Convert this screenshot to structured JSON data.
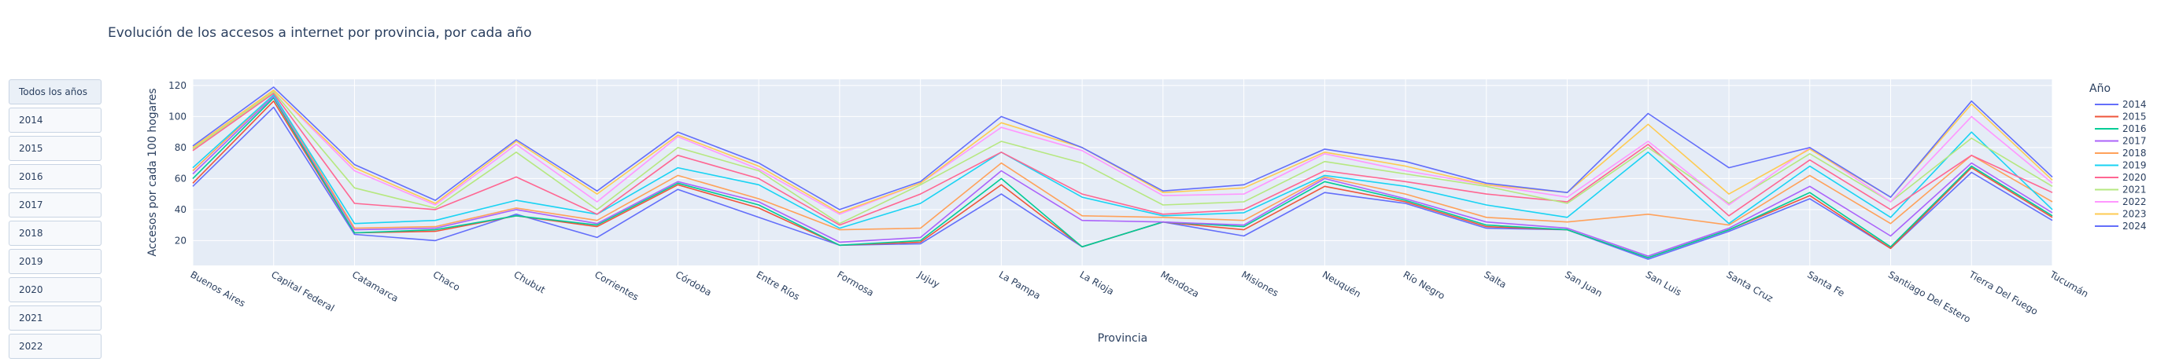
{
  "page": {
    "title": "Evolución de los accesos a internet por provincia, por cada año",
    "buttons": [
      "Todos los años",
      "2014",
      "2015",
      "2016",
      "2017",
      "2018",
      "2019",
      "2020",
      "2021",
      "2022"
    ],
    "active_button": "Todos los años"
  },
  "chart_data": {
    "type": "line",
    "title": "Evolución de los accesos a internet por provincia, por cada año",
    "xlabel": "Provincia",
    "ylabel": "Accesos por cada 100 hogares",
    "ylim": [
      4,
      124
    ],
    "yticks": [
      20,
      40,
      60,
      80,
      100,
      120
    ],
    "grid": true,
    "legend_title": "Año",
    "legend_position": "right",
    "categories": [
      "Buenos Aires",
      "Capital Federal",
      "Catamarca",
      "Chaco",
      "Chubut",
      "Corrientes",
      "Córdoba",
      "Entre Ríos",
      "Formosa",
      "Jujuy",
      "La Pampa",
      "La Rioja",
      "Mendoza",
      "Misiones",
      "Neuquén",
      "Río Negro",
      "Salta",
      "San Juan",
      "San Luis",
      "Santa Cruz",
      "Santa Fe",
      "Santiago Del Estero",
      "Tierra Del Fuego",
      "Tucumán"
    ],
    "series": [
      {
        "name": "2014",
        "color": "#636efa",
        "values": [
          55,
          106,
          24,
          20,
          37,
          22,
          53,
          35,
          17,
          18,
          50,
          16,
          32,
          23,
          51,
          44,
          28,
          27,
          8,
          26,
          47,
          15,
          64,
          33
        ]
      },
      {
        "name": "2015",
        "color": "#ef553b",
        "values": [
          57,
          110,
          25,
          26,
          36,
          29,
          56,
          41,
          17,
          19,
          56,
          16,
          32,
          27,
          55,
          45,
          29,
          27,
          9,
          27,
          49,
          15,
          67,
          35
        ]
      },
      {
        "name": "2016",
        "color": "#00cc96",
        "values": [
          60,
          112,
          25,
          27,
          36,
          30,
          57,
          43,
          17,
          20,
          60,
          16,
          32,
          29,
          58,
          46,
          30,
          27,
          9,
          27,
          51,
          16,
          68,
          36
        ]
      },
      {
        "name": "2017",
        "color": "#ab63fa",
        "values": [
          63,
          113,
          27,
          28,
          40,
          31,
          58,
          45,
          19,
          22,
          65,
          33,
          32,
          30,
          60,
          47,
          32,
          28,
          10,
          28,
          55,
          23,
          70,
          38
        ]
      },
      {
        "name": "2018",
        "color": "#ffa15a",
        "values": [
          65,
          114,
          28,
          29,
          41,
          33,
          62,
          47,
          27,
          28,
          70,
          36,
          35,
          33,
          61,
          50,
          35,
          32,
          37,
          30,
          62,
          31,
          75,
          45
        ]
      },
      {
        "name": "2019",
        "color": "#19d3f3",
        "values": [
          67,
          114,
          31,
          33,
          46,
          37,
          67,
          56,
          28,
          44,
          77,
          48,
          36,
          38,
          62,
          55,
          43,
          35,
          77,
          31,
          68,
          35,
          90,
          40
        ]
      },
      {
        "name": "2020",
        "color": "#ff6692",
        "values": [
          78,
          115,
          44,
          40,
          61,
          37,
          75,
          60,
          30,
          50,
          77,
          50,
          37,
          40,
          65,
          58,
          50,
          45,
          82,
          36,
          72,
          40,
          75,
          51
        ]
      },
      {
        "name": "2021",
        "color": "#b6e880",
        "values": [
          79,
          116,
          54,
          41,
          77,
          40,
          80,
          65,
          31,
          56,
          84,
          70,
          43,
          45,
          71,
          63,
          55,
          44,
          80,
          44,
          76,
          45,
          86,
          55
        ]
      },
      {
        "name": "2022",
        "color": "#ff97ff",
        "values": [
          80,
          117,
          65,
          43,
          82,
          45,
          87,
          66,
          37,
          57,
          93,
          78,
          49,
          50,
          76,
          65,
          56,
          48,
          84,
          43,
          80,
          45,
          100,
          57
        ]
      },
      {
        "name": "2023",
        "color": "#fecb52",
        "values": [
          80,
          117,
          67,
          44,
          84,
          50,
          88,
          68,
          38,
          57,
          96,
          80,
          51,
          54,
          77,
          68,
          56,
          51,
          95,
          50,
          79,
          48,
          108,
          59
        ]
      },
      {
        "name": "2024",
        "color": "#636efa",
        "values": [
          81,
          119,
          69,
          46,
          85,
          52,
          90,
          70,
          40,
          58,
          100,
          80,
          52,
          56,
          79,
          71,
          57,
          51,
          102,
          67,
          80,
          48,
          110,
          61
        ]
      }
    ]
  }
}
